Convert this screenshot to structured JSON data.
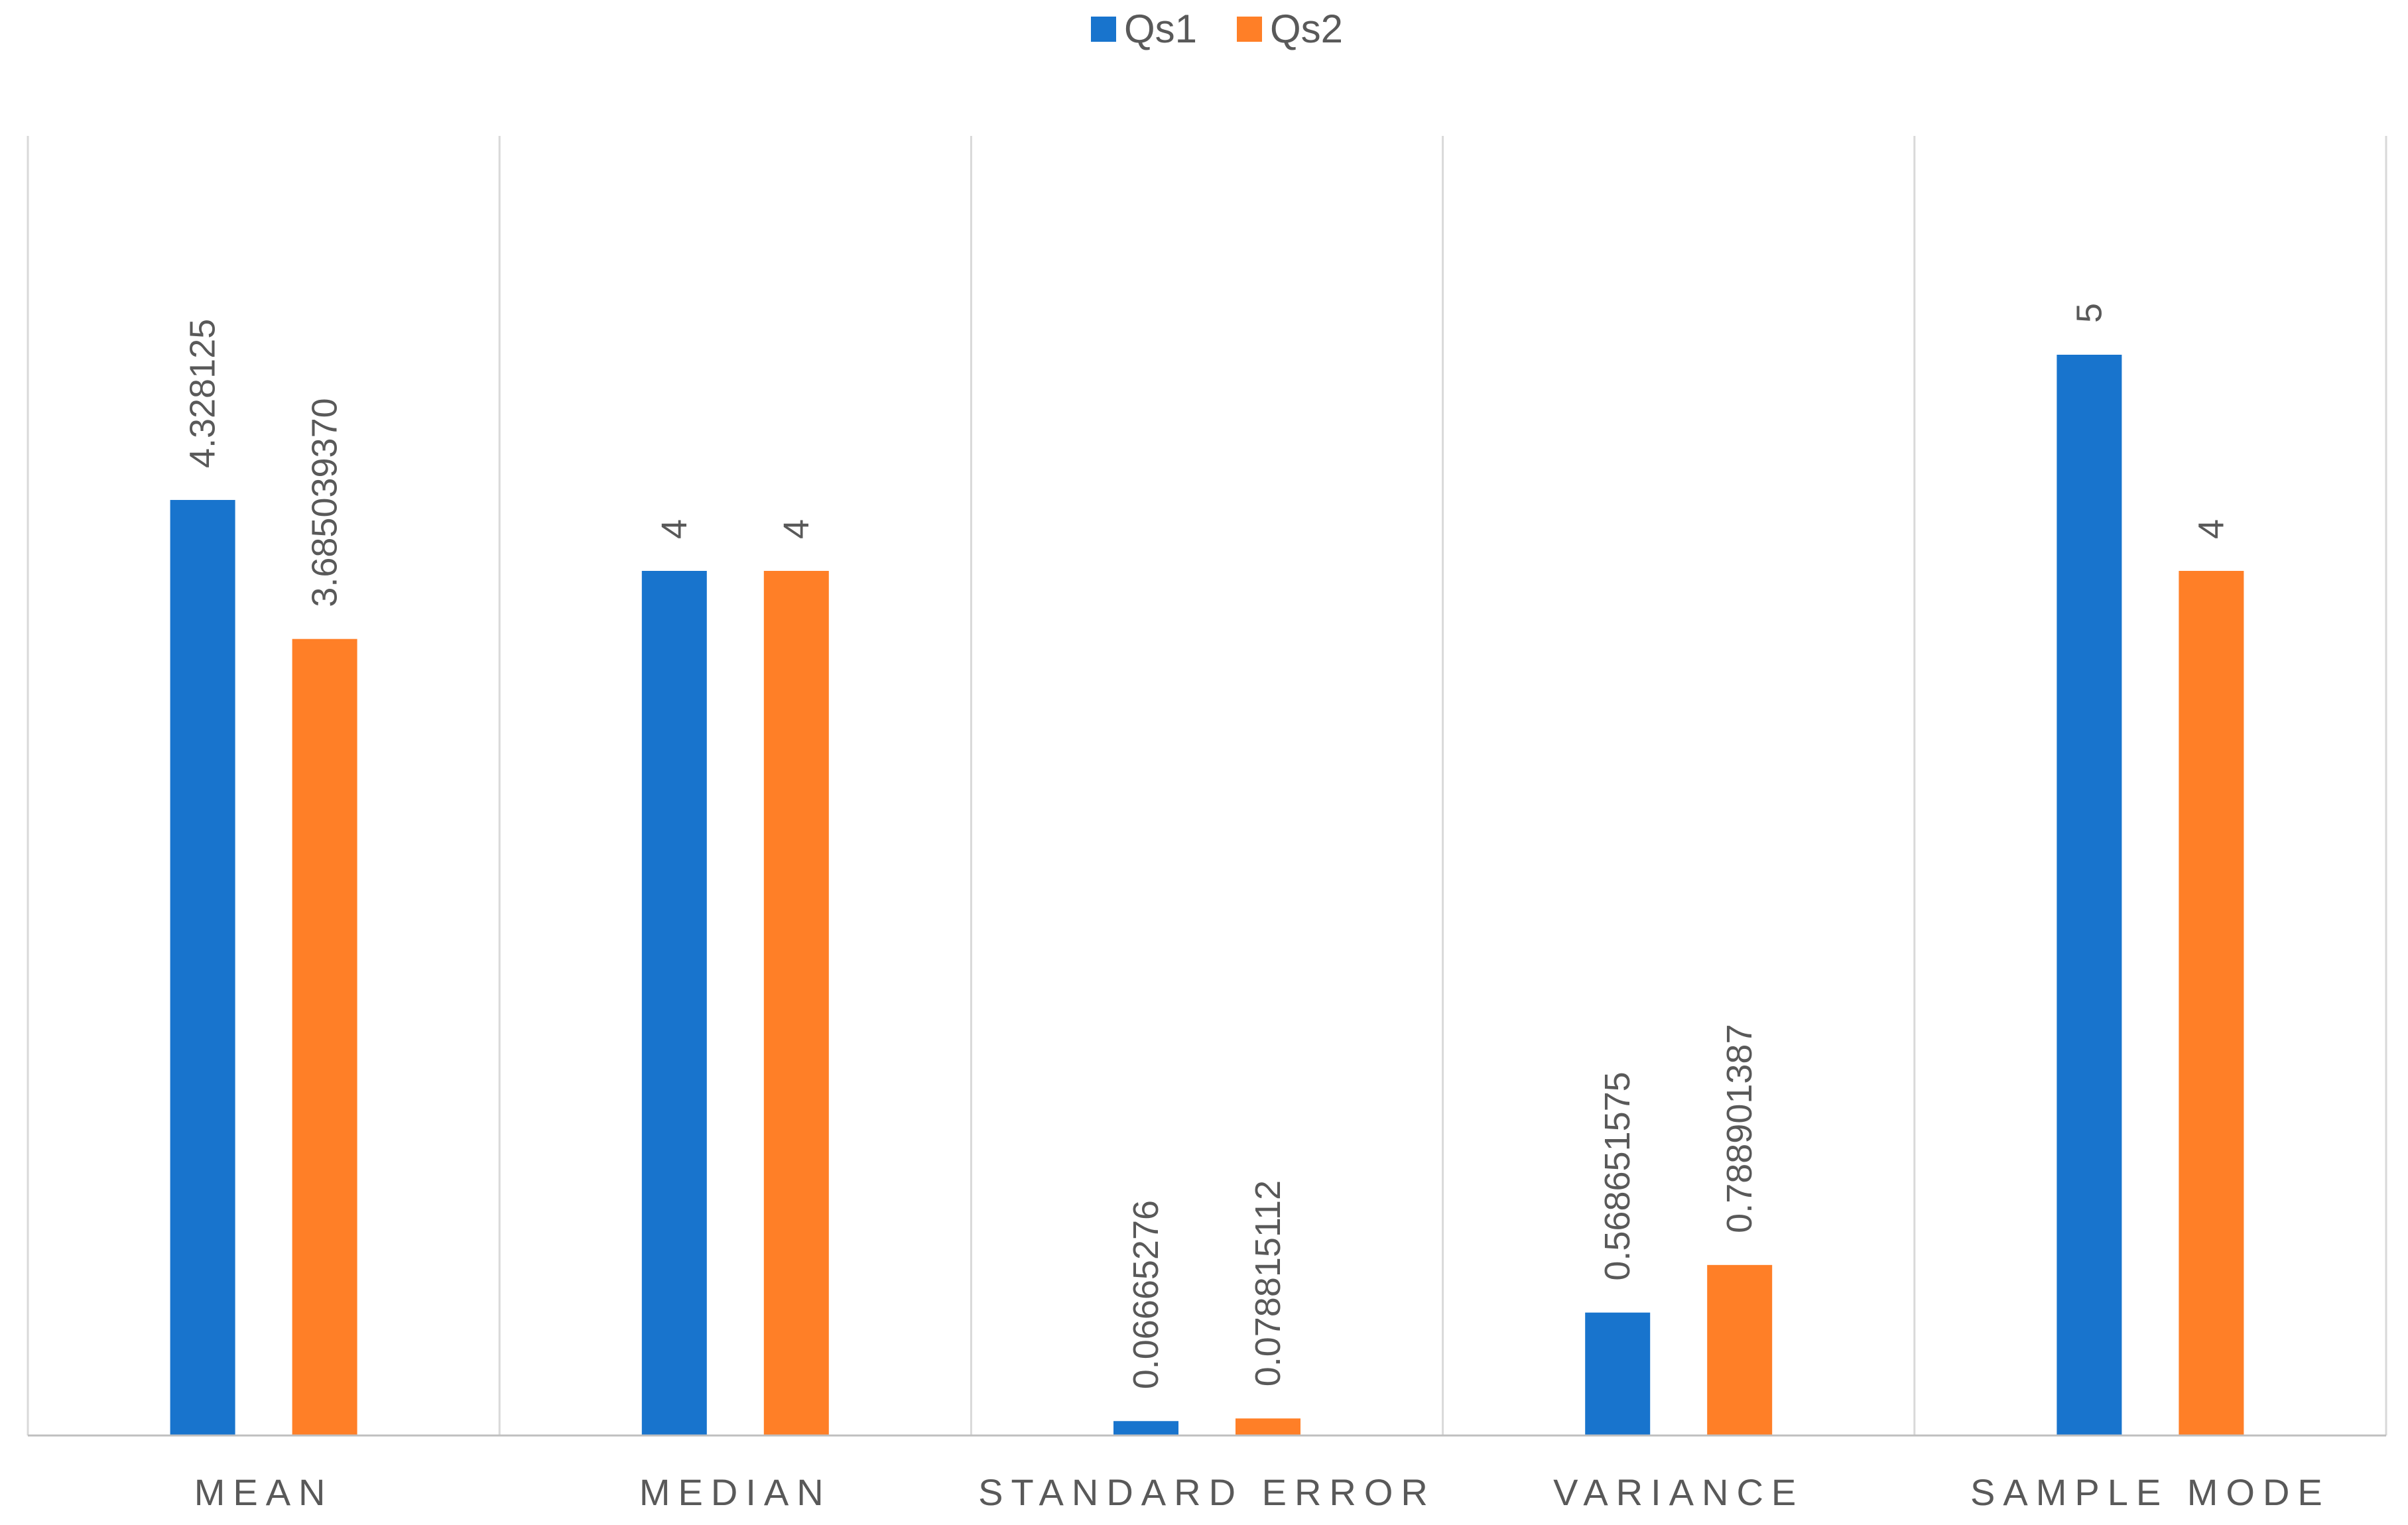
{
  "chart_data": {
    "type": "bar",
    "title": "",
    "xlabel": "",
    "ylabel": "",
    "ylim": [
      0,
      6
    ],
    "grid": "vertical category separators",
    "legend_position": "top-center",
    "categories": [
      "MEAN",
      "MEDIAN",
      "STANDARD ERROR",
      "VARIANCE",
      "SAMPLE MODE"
    ],
    "series": [
      {
        "name": "Qs1",
        "color": "#1874CD",
        "values": [
          4.328125,
          4,
          0.06665276,
          0.568651575,
          5
        ],
        "labels": [
          "4.328125",
          "4",
          "0.06665276",
          "0.568651575",
          "5"
        ]
      },
      {
        "name": "Qs2",
        "color": "#FF7F27",
        "values": [
          3.68503937,
          4,
          0.078815112,
          0.788901387,
          4
        ],
        "labels": [
          "3.685039370",
          "4",
          "0.078815112",
          "0.788901387",
          "4"
        ]
      }
    ]
  },
  "colors": {
    "gridline": "#D9D9D9",
    "axis": "#BFBFBF",
    "text": "#595959"
  }
}
